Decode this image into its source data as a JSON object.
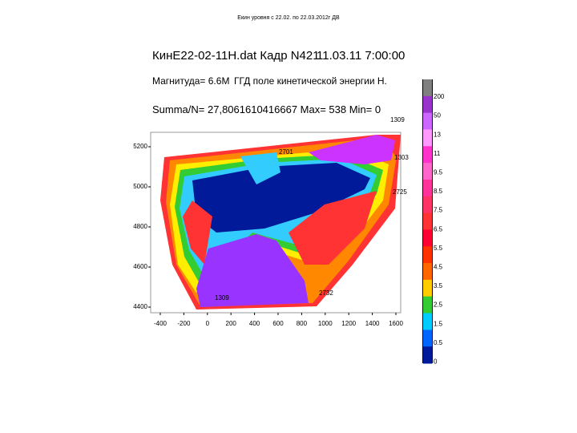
{
  "header": {
    "caption": "Екин уровня с 22.02. по 22.03.2012г ДВ"
  },
  "info": {
    "file": "КинE22-02-11H.dat Кадр N421",
    "datetime": "11.03.11 7:00:00",
    "magnitude": "Магнитуда= 6.6M",
    "field": "ГГД поле кинетической энергии H.",
    "stats": "Summa/N= 27,8061610416667 Max= 538 Min= 0"
  },
  "map": {
    "yticks": [
      "5200",
      "5000",
      "4800",
      "4600",
      "4400"
    ],
    "xticks": [
      "-400",
      "-200",
      "0",
      "200",
      "400",
      "600",
      "800",
      "1000",
      "1200",
      "1400",
      "1600"
    ],
    "stations": [
      "1309",
      "1303",
      "2701",
      "2725",
      "2732",
      "1309"
    ]
  },
  "legend": {
    "labels": [
      "200",
      "50",
      "13",
      "11",
      "9.5",
      "8.5",
      "7.5",
      "6.5",
      "5.5",
      "4.5",
      "3.5",
      "2.5",
      "1.5",
      "0.5",
      "0"
    ]
  }
}
